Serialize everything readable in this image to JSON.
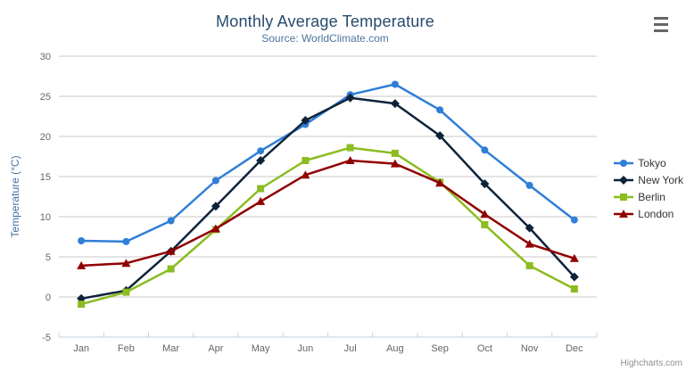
{
  "header": {
    "title": "Monthly Average Temperature",
    "subtitle": "Source: WorldClimate.com"
  },
  "toolbar": {
    "export_menu_icon": "hamburger-menu-icon"
  },
  "credits": {
    "label": "Highcharts.com"
  },
  "colors": {
    "title": "#274b6d",
    "subtitle": "#4d759e",
    "axis_label": "#666666",
    "y_axis_title": "#4572a7",
    "gridline": "#c8c8c8",
    "axis_line": "#c0d0e0",
    "legend_text": "#333333",
    "menu_icon": "#666666",
    "credits_text": "#909090"
  },
  "chart_data": {
    "type": "line",
    "title": "Monthly Average Temperature",
    "subtitle": "Source: WorldClimate.com",
    "categories": [
      "Jan",
      "Feb",
      "Mar",
      "Apr",
      "May",
      "Jun",
      "Jul",
      "Aug",
      "Sep",
      "Oct",
      "Nov",
      "Dec"
    ],
    "xlabel": "",
    "ylabel": "Temperature (°C)",
    "ylim": [
      -5,
      30
    ],
    "ytick_interval": 5,
    "yticks": [
      -5,
      0,
      5,
      10,
      15,
      20,
      25,
      30
    ],
    "grid": true,
    "legend_position": "right",
    "series": [
      {
        "name": "Tokyo",
        "color": "#2f7ed8",
        "marker": "circle",
        "values": [
          7.0,
          6.9,
          9.5,
          14.5,
          18.2,
          21.5,
          25.2,
          26.5,
          23.3,
          18.3,
          13.9,
          9.6
        ]
      },
      {
        "name": "New York",
        "color": "#0d233a",
        "marker": "diamond",
        "values": [
          -0.2,
          0.8,
          5.7,
          11.3,
          17.0,
          22.0,
          24.8,
          24.1,
          20.1,
          14.1,
          8.6,
          2.5
        ]
      },
      {
        "name": "Berlin",
        "color": "#8bbc21",
        "marker": "square",
        "values": [
          -0.9,
          0.6,
          3.5,
          8.4,
          13.5,
          17.0,
          18.6,
          17.9,
          14.3,
          9.0,
          3.9,
          1.0
        ]
      },
      {
        "name": "London",
        "color": "#910000",
        "marker": "triangle",
        "values": [
          3.9,
          4.2,
          5.7,
          8.5,
          11.9,
          15.2,
          17.0,
          16.6,
          14.2,
          10.3,
          6.6,
          4.8
        ]
      }
    ]
  }
}
